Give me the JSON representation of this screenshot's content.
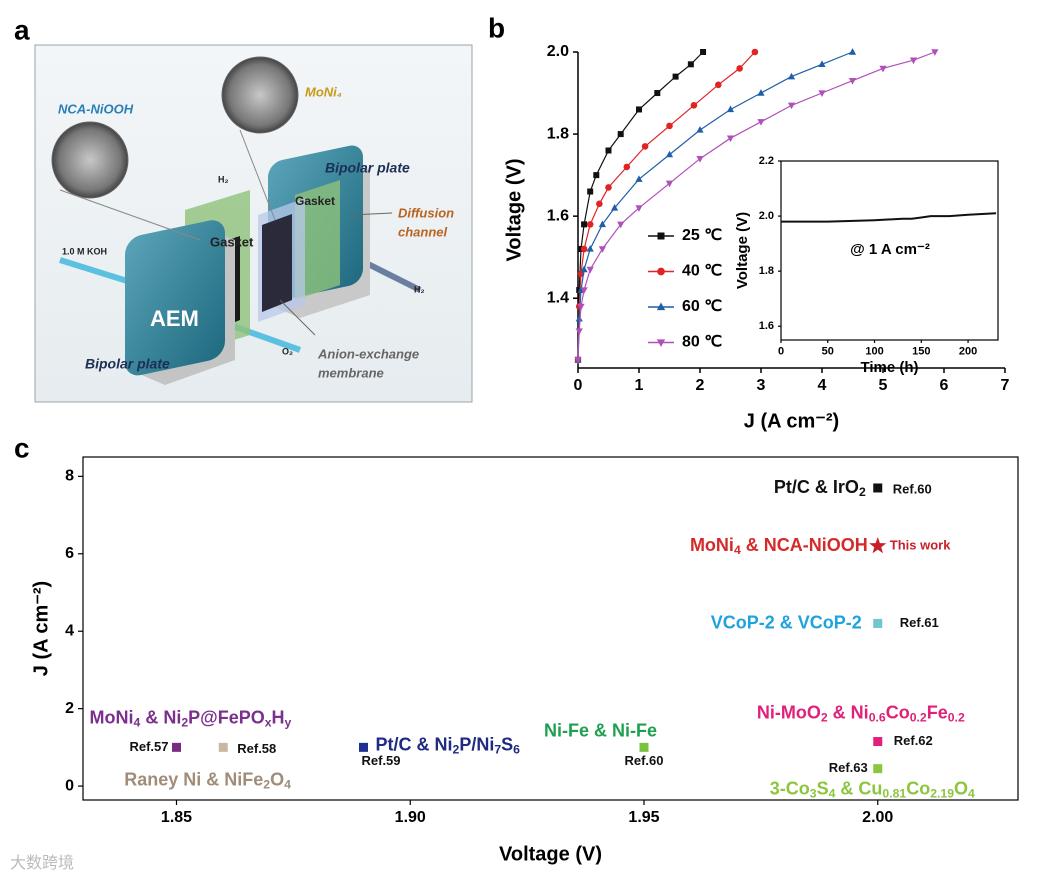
{
  "panel_labels": [
    "a",
    "b",
    "c"
  ],
  "watermark": "大数跨境",
  "diagram": {
    "labels": {
      "nca": "NCA-NiOOH",
      "moni": "MoNi₄",
      "plate_top": "Bipolar plate",
      "plate_bottom": "Bipolar plate",
      "gasket_left": "Gasket",
      "gasket_right": "Gasket",
      "diffusion": [
        "Diffusion",
        "channel"
      ],
      "aem": "AEM",
      "koh": "1.0 M KOH",
      "h2_top": "H₂",
      "h2_right": "H₂",
      "o2": "O₂",
      "membrane": [
        "Anion-exchange",
        "membrane"
      ]
    }
  },
  "chart_data": [
    {
      "type": "line",
      "x_label": "J (A cm⁻²)",
      "y_label": "Voltage (V)",
      "xlim": [
        0,
        7
      ],
      "xticks": [
        0,
        1,
        2,
        3,
        4,
        5,
        6,
        7
      ],
      "ylim": [
        1.23,
        2.0
      ],
      "yticks": [
        1.4,
        1.6,
        1.8,
        {
          "value": 2.0,
          "label": "2.0"
        }
      ],
      "series": [
        {
          "name": "25 ℃",
          "color": "#111111",
          "marker": "square",
          "x": [
            0,
            0.02,
            0.05,
            0.1,
            0.2,
            0.3,
            0.5,
            0.7,
            1.0,
            1.3,
            1.6,
            1.85,
            2.05
          ],
          "values": [
            1.25,
            1.42,
            1.52,
            1.58,
            1.66,
            1.7,
            1.76,
            1.8,
            1.86,
            1.9,
            1.94,
            1.97,
            2.0
          ]
        },
        {
          "name": "40 ℃",
          "color": "#e02424",
          "marker": "circle",
          "x": [
            0,
            0.02,
            0.05,
            0.1,
            0.2,
            0.35,
            0.5,
            0.8,
            1.1,
            1.5,
            1.9,
            2.3,
            2.65,
            2.9
          ],
          "values": [
            1.25,
            1.38,
            1.46,
            1.52,
            1.58,
            1.63,
            1.67,
            1.72,
            1.77,
            1.82,
            1.87,
            1.92,
            1.96,
            2.0
          ]
        },
        {
          "name": "60 ℃",
          "color": "#1f5fa8",
          "marker": "triangle-up",
          "x": [
            0,
            0.02,
            0.05,
            0.1,
            0.2,
            0.4,
            0.6,
            1.0,
            1.5,
            2.0,
            2.5,
            3.0,
            3.5,
            4.0,
            4.5
          ],
          "values": [
            1.25,
            1.35,
            1.42,
            1.47,
            1.52,
            1.58,
            1.62,
            1.69,
            1.75,
            1.81,
            1.86,
            1.9,
            1.94,
            1.97,
            2.0
          ]
        },
        {
          "name": "80 ℃",
          "color": "#b050b8",
          "marker": "triangle-down",
          "x": [
            0,
            0.02,
            0.05,
            0.1,
            0.2,
            0.4,
            0.7,
            1.0,
            1.5,
            2.0,
            2.5,
            3.0,
            3.5,
            4.0,
            4.5,
            5.0,
            5.5,
            5.85
          ],
          "values": [
            1.25,
            1.32,
            1.38,
            1.42,
            1.47,
            1.52,
            1.58,
            1.62,
            1.68,
            1.74,
            1.79,
            1.83,
            1.87,
            1.9,
            1.93,
            1.96,
            1.98,
            2.0
          ]
        }
      ]
    },
    {
      "type": "line",
      "x_label": "Time (h)",
      "y_label": "Voltage (V)",
      "annotation": "@ 1 A cm⁻²",
      "xlim": [
        0,
        232
      ],
      "xticks": [
        0,
        50,
        100,
        150,
        200
      ],
      "ylim": [
        1.55,
        2.2
      ],
      "yticks": [
        1.6,
        1.8,
        {
          "value": 2.0,
          "label": "2.0"
        },
        2.2
      ],
      "series": [
        {
          "color": "#111111",
          "x": [
            0,
            20,
            50,
            100,
            130,
            140,
            150,
            160,
            180,
            200,
            230
          ],
          "values": [
            1.98,
            1.98,
            1.98,
            1.985,
            1.99,
            1.99,
            1.995,
            2.0,
            2.0,
            2.005,
            2.01
          ]
        }
      ]
    },
    {
      "type": "scatter",
      "x_label": "Voltage (V)",
      "y_label": "J (A cm⁻²)",
      "xlim": [
        1.83,
        2.03
      ],
      "xticks": [
        1.85,
        {
          "value": 1.9,
          "label": "1.90"
        },
        1.95,
        {
          "value": 2.0,
          "label": "2.00"
        }
      ],
      "ylim": [
        -0.36,
        8.5
      ],
      "yticks": [
        0,
        2,
        4,
        6,
        8
      ],
      "series": [
        {
          "name": [
            "Pt/C & IrO",
            "2"
          ],
          "ref": "Ref.60",
          "marker": "square",
          "color": "#111111",
          "label_color": "#111111",
          "ref_color": "#111111",
          "x": [
            2.0
          ],
          "values": [
            7.7
          ]
        },
        {
          "name": [
            "MoNi",
            "4",
            " & NCA-NiOOH"
          ],
          "ref": "This work",
          "marker": "star",
          "color": "#c8202a",
          "label_color": "#d42a2a",
          "ref_color": "#c8202a",
          "x": [
            2.0
          ],
          "values": [
            6.2
          ]
        },
        {
          "name": [
            "VCoP-2 & VCoP-2"
          ],
          "ref": "Ref.61",
          "marker": "square",
          "color": "#6ec6d0",
          "label_color": "#1fa3dc",
          "ref_color": "#111111",
          "x": [
            2.0
          ],
          "values": [
            4.2
          ]
        },
        {
          "name": [
            "MoNi",
            "4",
            " & Ni",
            "2",
            "P@FePO",
            "x",
            "H",
            "y"
          ],
          "ref": "Ref.57",
          "marker": "square",
          "color": "#7a2a80",
          "label_color": "#7b2f8e",
          "ref_color": "#111111",
          "x": [
            1.85
          ],
          "values": [
            1.0
          ]
        },
        {
          "name": [
            "Raney Ni & NiFe",
            "2",
            "O",
            "4"
          ],
          "ref": "Ref.58",
          "marker": "square",
          "color": "#c8b8a0",
          "label_color": "#a08c78",
          "ref_color": "#111111",
          "x": [
            1.86
          ],
          "values": [
            1.0
          ]
        },
        {
          "name": [
            "Pt/C & Ni",
            "2",
            "P/Ni",
            "7",
            "S",
            "6"
          ],
          "ref": "Ref.59",
          "marker": "square",
          "color": "#1f3090",
          "label_color": "#1f2a80",
          "ref_color": "#111111",
          "x": [
            1.89
          ],
          "values": [
            1.0
          ]
        },
        {
          "name": [
            "Ni-Fe & Ni-Fe"
          ],
          "ref": "Ref.60",
          "marker": "square",
          "color": "#7ac23e",
          "label_color": "#1ea050",
          "ref_color": "#111111",
          "x": [
            1.95
          ],
          "values": [
            1.0
          ]
        },
        {
          "name": [
            "Ni-MoO",
            "2",
            " & Ni",
            "0.6",
            "Co",
            "0.2",
            "Fe",
            "0.2"
          ],
          "ref": "Ref.62",
          "marker": "square",
          "color": "#e0207a",
          "label_color": "#e0207a",
          "ref_color": "#111111",
          "x": [
            2.0
          ],
          "values": [
            1.15
          ]
        },
        {
          "name": [
            "3-Co",
            "3",
            "S",
            "4",
            " & Cu",
            "0.81",
            "Co",
            "2.19",
            "O",
            "4"
          ],
          "ref": "Ref.63",
          "marker": "square",
          "color": "#8cc63e",
          "label_color": "#8cc63e",
          "ref_color": "#111111",
          "x": [
            2.0
          ],
          "values": [
            0.45
          ]
        }
      ]
    }
  ]
}
